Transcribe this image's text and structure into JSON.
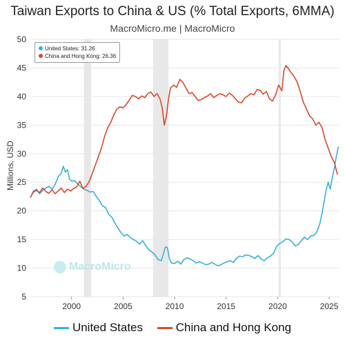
{
  "header": {
    "title": "Taiwan Exports to China & US (% Total Exports, 6MMA)",
    "subtitle": "MacroMicro.me | MacroMicro"
  },
  "tooltip": {
    "us_label": "United States: 31.26",
    "cn_label": "China and Hong Kong: 26.36"
  },
  "watermark": "MacroMicro",
  "colors": {
    "us": "#3aaed8",
    "cn": "#d9472b",
    "recession": "#e8e8e8",
    "grid": "#e6e6e6"
  },
  "chart_data": {
    "type": "line",
    "ylabel": "Millions, USD",
    "xlim": [
      1996.0,
      2026.0
    ],
    "ylim": [
      5,
      50
    ],
    "x_ticks": [
      2000,
      2005,
      2010,
      2015,
      2020,
      2025
    ],
    "x_tick_labels": [
      "2000",
      "2005",
      "2010",
      "2015",
      "2020",
      "2025"
    ],
    "y_ticks": [
      5,
      10,
      15,
      20,
      25,
      30,
      35,
      40,
      45,
      50
    ],
    "y_tick_labels": [
      "5",
      "10",
      "15",
      "20",
      "25",
      "30",
      "35",
      "40",
      "45",
      "50"
    ],
    "shaded_periods": [
      [
        2001.2,
        2001.9
      ],
      [
        2007.9,
        2009.4
      ],
      [
        2020.1,
        2020.3
      ]
    ],
    "series": [
      {
        "name": "United States",
        "x": [
          1996.0,
          1996.3,
          1996.6,
          1996.9,
          1997.2,
          1997.5,
          1997.8,
          1998.1,
          1998.4,
          1998.7,
          1999.0,
          1999.2,
          1999.4,
          1999.6,
          1999.8,
          2000.0,
          2000.3,
          2000.6,
          2000.9,
          2001.2,
          2001.5,
          2001.8,
          2002.1,
          2002.4,
          2002.7,
          2003.0,
          2003.3,
          2003.6,
          2003.9,
          2004.2,
          2004.5,
          2004.8,
          2005.1,
          2005.4,
          2005.7,
          2006.0,
          2006.3,
          2006.6,
          2006.9,
          2007.2,
          2007.5,
          2007.8,
          2008.1,
          2008.4,
          2008.7,
          2008.9,
          2009.1,
          2009.3,
          2009.5,
          2009.7,
          2010.0,
          2010.3,
          2010.6,
          2010.9,
          2011.2,
          2011.5,
          2011.8,
          2012.1,
          2012.4,
          2012.7,
          2013.0,
          2013.3,
          2013.6,
          2013.9,
          2014.2,
          2014.5,
          2014.8,
          2015.1,
          2015.4,
          2015.7,
          2016.0,
          2016.3,
          2016.6,
          2016.9,
          2017.2,
          2017.5,
          2017.8,
          2018.1,
          2018.4,
          2018.7,
          2019.0,
          2019.3,
          2019.6,
          2019.9,
          2020.2,
          2020.5,
          2020.8,
          2021.1,
          2021.4,
          2021.7,
          2022.0,
          2022.3,
          2022.6,
          2022.9,
          2023.2,
          2023.5,
          2023.8,
          2024.1,
          2024.3,
          2024.5,
          2024.7,
          2024.9,
          2025.1,
          2025.3,
          2025.5,
          2025.7,
          2025.9
        ],
        "values": [
          22.3,
          23.5,
          23.8,
          23.0,
          23.6,
          24.0,
          24.3,
          23.8,
          24.6,
          26.0,
          26.6,
          27.8,
          26.8,
          27.2,
          25.6,
          25.2,
          25.3,
          24.7,
          24.2,
          23.8,
          23.6,
          23.3,
          23.4,
          22.5,
          21.8,
          20.9,
          20.6,
          19.4,
          18.9,
          17.9,
          17.0,
          16.2,
          15.6,
          15.9,
          15.3,
          15.0,
          14.7,
          14.2,
          14.8,
          13.9,
          13.2,
          12.8,
          12.3,
          11.5,
          11.3,
          12.4,
          13.7,
          13.6,
          11.6,
          10.9,
          10.8,
          11.2,
          10.7,
          11.5,
          11.8,
          11.6,
          11.3,
          10.9,
          11.1,
          10.9,
          10.6,
          10.7,
          11.0,
          10.7,
          10.4,
          10.6,
          10.9,
          11.1,
          11.3,
          11.0,
          11.7,
          12.1,
          12.0,
          12.3,
          12.2,
          12.0,
          11.7,
          12.2,
          11.6,
          11.3,
          11.8,
          12.1,
          12.6,
          13.8,
          14.3,
          14.6,
          15.1,
          15.0,
          14.6,
          13.9,
          14.1,
          14.8,
          15.4,
          15.0,
          15.6,
          15.7,
          16.3,
          17.8,
          19.5,
          21.5,
          23.6,
          25.0,
          23.8,
          25.8,
          27.4,
          29.6,
          31.26
        ]
      },
      {
        "name": "China and Hong Kong",
        "x": [
          1996.0,
          1996.3,
          1996.6,
          1996.9,
          1997.2,
          1997.5,
          1997.8,
          1998.1,
          1998.4,
          1998.7,
          1999.0,
          1999.3,
          1999.6,
          1999.9,
          2000.2,
          2000.5,
          2000.8,
          2001.1,
          2001.4,
          2001.7,
          2002.0,
          2002.3,
          2002.6,
          2002.9,
          2003.2,
          2003.5,
          2003.8,
          2004.1,
          2004.4,
          2004.7,
          2005.0,
          2005.3,
          2005.6,
          2005.9,
          2006.2,
          2006.5,
          2006.8,
          2007.1,
          2007.4,
          2007.7,
          2008.0,
          2008.3,
          2008.6,
          2008.8,
          2009.0,
          2009.2,
          2009.4,
          2009.6,
          2009.9,
          2010.2,
          2010.5,
          2010.8,
          2011.1,
          2011.4,
          2011.7,
          2012.0,
          2012.3,
          2012.6,
          2012.9,
          2013.2,
          2013.5,
          2013.8,
          2014.1,
          2014.4,
          2014.7,
          2015.0,
          2015.3,
          2015.6,
          2015.9,
          2016.2,
          2016.5,
          2016.8,
          2017.1,
          2017.4,
          2017.7,
          2018.0,
          2018.3,
          2018.6,
          2018.9,
          2019.2,
          2019.5,
          2019.8,
          2020.1,
          2020.4,
          2020.6,
          2020.8,
          2021.0,
          2021.3,
          2021.6,
          2021.9,
          2022.2,
          2022.5,
          2022.8,
          2023.1,
          2023.4,
          2023.7,
          2024.0,
          2024.3,
          2024.6,
          2024.9,
          2025.2,
          2025.5,
          2025.8
        ],
        "values": [
          22.4,
          23.3,
          23.6,
          23.2,
          24.0,
          23.4,
          23.1,
          23.7,
          23.0,
          23.5,
          24.0,
          23.2,
          23.8,
          23.5,
          23.9,
          24.2,
          25.2,
          23.9,
          24.3,
          25.1,
          26.5,
          28.0,
          29.5,
          31.0,
          33.0,
          34.5,
          35.5,
          36.8,
          37.8,
          38.2,
          38.0,
          38.6,
          39.4,
          40.2,
          40.0,
          39.6,
          40.1,
          39.8,
          40.5,
          40.8,
          40.0,
          40.5,
          39.5,
          38.0,
          35.0,
          36.5,
          39.5,
          41.5,
          42.0,
          41.6,
          43.0,
          42.5,
          41.5,
          40.5,
          40.7,
          40.0,
          39.3,
          39.5,
          39.8,
          40.1,
          40.5,
          39.8,
          40.2,
          40.5,
          40.3,
          40.0,
          40.6,
          40.2,
          39.6,
          39.0,
          38.9,
          39.7,
          40.1,
          40.5,
          40.3,
          41.2,
          41.1,
          40.4,
          40.9,
          39.6,
          39.2,
          40.3,
          42.0,
          41.0,
          44.5,
          45.4,
          45.0,
          44.2,
          43.5,
          42.5,
          40.8,
          39.0,
          37.8,
          36.6,
          36.1,
          35.0,
          35.5,
          34.6,
          32.5,
          31.0,
          29.5,
          28.5,
          26.36
        ]
      }
    ],
    "legend": [
      "United States",
      "China and Hong Kong"
    ],
    "legend_position": "bottom"
  }
}
